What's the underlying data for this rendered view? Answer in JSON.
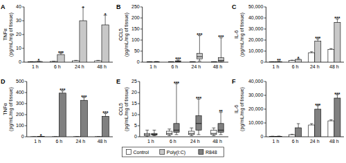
{
  "chart_data": [
    {
      "type": "bar",
      "title": "A",
      "y_label": [
        "TNFα",
        "(pg/mL/mg of tissue)"
      ],
      "categories": [
        "1 h",
        "6 h",
        "24 h",
        "48 h"
      ],
      "ylim": [
        0,
        40
      ],
      "yticks": [
        0,
        10,
        20,
        30,
        40
      ],
      "series": [
        {
          "name": "Control",
          "color": "#ffffff",
          "values": [
            0.3,
            0.5,
            1,
            1
          ],
          "errors": [
            0.1,
            0.2,
            0.3,
            0.3
          ]
        },
        {
          "name": "Poly(I:C)",
          "color": "#c8c8c8",
          "values": [
            0.5,
            5.5,
            30,
            27
          ],
          "errors": [
            0.2,
            1,
            10,
            7
          ],
          "annotations": [
            "*",
            "***",
            "*",
            "*"
          ]
        }
      ]
    },
    {
      "type": "box",
      "title": "B",
      "y_label": [
        "CCL5",
        "(pg/mL/mg of tissue)"
      ],
      "categories": [
        "1 h",
        "6 h",
        "24 h",
        "48 h"
      ],
      "ylim": [
        0,
        250
      ],
      "yticks": [
        0,
        50,
        100,
        150,
        200,
        250
      ],
      "series": [
        {
          "name": "Control",
          "color": "#ffffff",
          "min": [
            0,
            0,
            0,
            0
          ],
          "q1": [
            0.3,
            0.3,
            0.3,
            0.3
          ],
          "median": [
            0.5,
            0.5,
            0.5,
            0.5
          ],
          "q3": [
            1,
            1,
            1,
            1
          ],
          "max": [
            2,
            2,
            2,
            2
          ]
        },
        {
          "name": "Poly(I:C)",
          "color": "#c8c8c8",
          "min": [
            0,
            1,
            5,
            1
          ],
          "q1": [
            0.3,
            2,
            15,
            3
          ],
          "median": [
            0.5,
            4,
            25,
            8
          ],
          "q3": [
            1.5,
            6,
            40,
            20
          ],
          "max": [
            3,
            10,
            120,
            110
          ],
          "annotations": [
            null,
            "***",
            "***",
            "***"
          ]
        }
      ]
    },
    {
      "type": "bar",
      "title": "C",
      "y_label": [
        "IL-6",
        "(pg/mL/mg of tissue)"
      ],
      "categories": [
        "1 h",
        "6 h",
        "24 h",
        "48 h"
      ],
      "ylim": [
        0,
        50000
      ],
      "yticks": [
        0,
        {
          "value": 10000,
          "label": "10,000"
        },
        {
          "value": 20000,
          "label": "20,000"
        },
        {
          "value": 30000,
          "label": "30,000"
        },
        {
          "value": 40000,
          "label": "40,000"
        },
        {
          "value": 50000,
          "label": "50,000"
        }
      ],
      "series": [
        {
          "name": "Control",
          "color": "#ffffff",
          "values": [
            300,
            1500,
            8500,
            11500
          ],
          "errors": [
            100,
            300,
            1000,
            800
          ]
        },
        {
          "name": "Poly(I:C)",
          "color": "#c8c8c8",
          "values": [
            500,
            2500,
            19000,
            36000
          ],
          "errors": [
            200,
            500,
            2000,
            3000
          ],
          "annotations": [
            "**",
            "*",
            "***",
            "***"
          ]
        }
      ]
    },
    {
      "type": "bar",
      "title": "D",
      "y_label": [
        "TNFα",
        "(pg/mL/mg of tissue)"
      ],
      "categories": [
        "1 h",
        "6 h",
        "24 h",
        "48 h"
      ],
      "ylim": [
        0,
        500
      ],
      "yticks": [
        0,
        100,
        200,
        300,
        400,
        500
      ],
      "series": [
        {
          "name": "Control",
          "color": "#ffffff",
          "values": [
            0.3,
            0.5,
            1,
            1
          ],
          "errors": [
            0.1,
            0.2,
            0.3,
            0.3
          ]
        },
        {
          "name": "R848",
          "color": "#808080",
          "values": [
            3,
            395,
            330,
            185
          ],
          "errors": [
            1,
            20,
            25,
            25
          ],
          "annotations": [
            "*",
            "***",
            "***",
            "***"
          ]
        }
      ]
    },
    {
      "type": "box",
      "title": "E",
      "y_label": [
        "CCL5",
        "(pg/mL/mg of tissue)"
      ],
      "categories": [
        "1 h",
        "6 h",
        "24 h",
        "48 h"
      ],
      "ylim": [
        0,
        25
      ],
      "yticks": [
        0,
        5,
        10,
        15,
        20,
        25
      ],
      "series": [
        {
          "name": "Control",
          "color": "#ffffff",
          "min": [
            0,
            0.5,
            0.5,
            0.5
          ],
          "q1": [
            0.5,
            1,
            1,
            1
          ],
          "median": [
            1,
            1.5,
            1.5,
            1.5
          ],
          "q3": [
            1.5,
            2.5,
            2.5,
            3
          ],
          "max": [
            3,
            3.5,
            4,
            4
          ]
        },
        {
          "name": "R848",
          "color": "#808080",
          "min": [
            0.5,
            1,
            1,
            1
          ],
          "q1": [
            0.8,
            2,
            3,
            2
          ],
          "median": [
            1,
            3,
            6,
            3
          ],
          "q3": [
            1.5,
            6,
            9.5,
            6
          ],
          "max": [
            3,
            24,
            17,
            11
          ],
          "annotations": [
            null,
            "***",
            "***",
            "**"
          ]
        }
      ]
    },
    {
      "type": "bar",
      "title": "F",
      "y_label": [
        "IL-6",
        "(pg/mL/mg of tissue)"
      ],
      "categories": [
        "1 h",
        "6 h",
        "24 h",
        "48 h"
      ],
      "ylim": [
        0,
        40000
      ],
      "yticks": [
        0,
        {
          "value": 10000,
          "label": "10,000"
        },
        {
          "value": 20000,
          "label": "20,000"
        },
        {
          "value": 30000,
          "label": "30,000"
        },
        {
          "value": 40000,
          "label": "40,000"
        }
      ],
      "series": [
        {
          "name": "Control",
          "color": "#ffffff",
          "values": [
            300,
            1500,
            8500,
            11500
          ],
          "errors": [
            100,
            300,
            1000,
            800
          ]
        },
        {
          "name": "R848",
          "color": "#808080",
          "values": [
            300,
            6500,
            20000,
            28000
          ],
          "errors": [
            200,
            3000,
            2500,
            2500
          ],
          "annotations": [
            null,
            null,
            "***",
            "***"
          ]
        }
      ]
    }
  ]
}
